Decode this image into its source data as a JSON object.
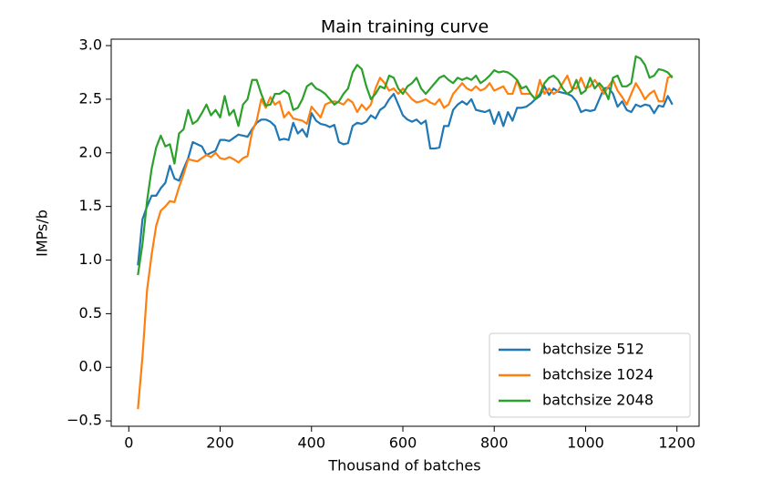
{
  "chart_data": {
    "type": "line",
    "title": "Main training curve",
    "xlabel": "Thousand of batches",
    "ylabel": "IMPs/b",
    "x": [
      20,
      30,
      40,
      50,
      60,
      70,
      80,
      90,
      100,
      110,
      120,
      130,
      140,
      150,
      160,
      170,
      180,
      190,
      200,
      210,
      220,
      230,
      240,
      250,
      260,
      270,
      280,
      290,
      300,
      310,
      320,
      330,
      340,
      350,
      360,
      370,
      380,
      390,
      400,
      410,
      420,
      430,
      440,
      450,
      460,
      470,
      480,
      490,
      500,
      510,
      520,
      530,
      540,
      550,
      560,
      570,
      580,
      590,
      600,
      610,
      620,
      630,
      640,
      650,
      660,
      670,
      680,
      690,
      700,
      710,
      720,
      730,
      740,
      750,
      760,
      770,
      780,
      790,
      800,
      810,
      820,
      830,
      840,
      850,
      860,
      870,
      880,
      890,
      900,
      910,
      920,
      930,
      940,
      950,
      960,
      970,
      980,
      990,
      1000,
      1010,
      1020,
      1030,
      1040,
      1050,
      1060,
      1070,
      1080,
      1090,
      1100,
      1110,
      1120,
      1130,
      1140,
      1150,
      1160,
      1170,
      1180,
      1190
    ],
    "series": [
      {
        "name": "batchsize 512",
        "color": "#1f77b4",
        "values": [
          0.95,
          1.38,
          1.5,
          1.6,
          1.6,
          1.67,
          1.72,
          1.88,
          1.76,
          1.74,
          1.85,
          1.95,
          2.1,
          2.08,
          2.06,
          1.98,
          2.0,
          2.02,
          2.12,
          2.12,
          2.11,
          2.14,
          2.17,
          2.16,
          2.15,
          2.22,
          2.28,
          2.31,
          2.31,
          2.29,
          2.25,
          2.12,
          2.13,
          2.12,
          2.28,
          2.18,
          2.22,
          2.15,
          2.37,
          2.3,
          2.27,
          2.26,
          2.24,
          2.26,
          2.1,
          2.08,
          2.09,
          2.25,
          2.28,
          2.27,
          2.29,
          2.35,
          2.32,
          2.4,
          2.43,
          2.5,
          2.55,
          2.45,
          2.35,
          2.31,
          2.29,
          2.31,
          2.27,
          2.3,
          2.04,
          2.04,
          2.05,
          2.25,
          2.25,
          2.4,
          2.45,
          2.48,
          2.45,
          2.5,
          2.4,
          2.39,
          2.38,
          2.4,
          2.27,
          2.38,
          2.25,
          2.38,
          2.3,
          2.42,
          2.42,
          2.43,
          2.46,
          2.5,
          2.53,
          2.62,
          2.54,
          2.6,
          2.57,
          2.56,
          2.55,
          2.53,
          2.48,
          2.38,
          2.4,
          2.39,
          2.4,
          2.5,
          2.6,
          2.61,
          2.55,
          2.43,
          2.48,
          2.4,
          2.38,
          2.45,
          2.43,
          2.45,
          2.44,
          2.37,
          2.44,
          2.43,
          2.53,
          2.45
        ]
      },
      {
        "name": "batchsize 1024",
        "color": "#ff7f0e",
        "values": [
          -0.39,
          0.1,
          0.72,
          1.05,
          1.32,
          1.46,
          1.5,
          1.55,
          1.54,
          1.68,
          1.8,
          1.94,
          1.93,
          1.92,
          1.95,
          1.98,
          1.96,
          2.0,
          1.95,
          1.94,
          1.96,
          1.94,
          1.91,
          1.95,
          1.97,
          2.2,
          2.3,
          2.5,
          2.42,
          2.52,
          2.45,
          2.48,
          2.33,
          2.38,
          2.32,
          2.31,
          2.3,
          2.27,
          2.43,
          2.38,
          2.33,
          2.45,
          2.47,
          2.48,
          2.47,
          2.45,
          2.5,
          2.47,
          2.38,
          2.45,
          2.4,
          2.45,
          2.6,
          2.7,
          2.65,
          2.58,
          2.6,
          2.55,
          2.6,
          2.55,
          2.5,
          2.47,
          2.48,
          2.5,
          2.47,
          2.45,
          2.5,
          2.42,
          2.45,
          2.55,
          2.6,
          2.65,
          2.6,
          2.58,
          2.62,
          2.58,
          2.6,
          2.65,
          2.58,
          2.6,
          2.62,
          2.55,
          2.55,
          2.68,
          2.55,
          2.55,
          2.55,
          2.5,
          2.68,
          2.55,
          2.6,
          2.55,
          2.58,
          2.65,
          2.72,
          2.6,
          2.6,
          2.7,
          2.6,
          2.62,
          2.68,
          2.62,
          2.55,
          2.62,
          2.68,
          2.58,
          2.52,
          2.45,
          2.55,
          2.65,
          2.58,
          2.5,
          2.55,
          2.58,
          2.48,
          2.48,
          2.7,
          2.72
        ]
      },
      {
        "name": "batchsize 2048",
        "color": "#2ca02c",
        "values": [
          0.86,
          1.15,
          1.55,
          1.85,
          2.05,
          2.16,
          2.06,
          2.08,
          1.9,
          2.18,
          2.22,
          2.4,
          2.27,
          2.3,
          2.37,
          2.45,
          2.35,
          2.4,
          2.33,
          2.53,
          2.35,
          2.4,
          2.25,
          2.45,
          2.5,
          2.68,
          2.68,
          2.55,
          2.44,
          2.45,
          2.55,
          2.55,
          2.58,
          2.55,
          2.4,
          2.42,
          2.5,
          2.62,
          2.65,
          2.6,
          2.58,
          2.55,
          2.5,
          2.45,
          2.48,
          2.55,
          2.6,
          2.75,
          2.82,
          2.78,
          2.62,
          2.5,
          2.55,
          2.62,
          2.6,
          2.72,
          2.7,
          2.6,
          2.55,
          2.62,
          2.65,
          2.7,
          2.6,
          2.55,
          2.6,
          2.65,
          2.7,
          2.72,
          2.68,
          2.65,
          2.7,
          2.68,
          2.7,
          2.68,
          2.72,
          2.65,
          2.68,
          2.72,
          2.77,
          2.75,
          2.76,
          2.75,
          2.72,
          2.68,
          2.6,
          2.62,
          2.55,
          2.5,
          2.55,
          2.65,
          2.7,
          2.72,
          2.68,
          2.6,
          2.55,
          2.58,
          2.68,
          2.55,
          2.58,
          2.7,
          2.6,
          2.65,
          2.6,
          2.5,
          2.7,
          2.72,
          2.62,
          2.62,
          2.65,
          2.9,
          2.88,
          2.82,
          2.7,
          2.72,
          2.78,
          2.77,
          2.75,
          2.7
        ]
      }
    ],
    "xlim": [
      -38.5,
      1248.5
    ],
    "ylim": [
      -0.55,
      3.06
    ],
    "xticks": [
      0,
      200,
      400,
      600,
      800,
      1000,
      1200
    ],
    "yticks": [
      {
        "value": -0.5,
        "label": "−0.5"
      },
      {
        "value": 0,
        "label": "0.0"
      },
      0.5,
      {
        "value": 1,
        "label": "1.0"
      },
      1.5,
      {
        "value": 2,
        "label": "2.0"
      },
      2.5,
      {
        "value": 3,
        "label": "3.0"
      }
    ],
    "legend": "lower right"
  }
}
